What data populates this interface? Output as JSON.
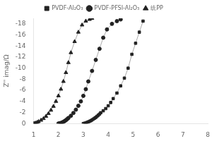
{
  "chart_data": {
    "type": "line",
    "ylabel": "Z'' imag/Ω",
    "xlim": [
      1,
      8
    ],
    "ylim": [
      0,
      -19
    ],
    "xticks": [
      1,
      2,
      3,
      4,
      5,
      6,
      7,
      8
    ],
    "yticks": [
      0,
      -2,
      -4,
      -6,
      -8,
      -10,
      -12,
      -14,
      -16,
      -18
    ],
    "grid": false,
    "legend": "top",
    "color": "#aaaaaa",
    "line_style": "solid",
    "series": [
      {
        "name": "PVDF-Al₂O₃",
        "marker": "square",
        "color": "#222222",
        "x": [
          3.0,
          3.05,
          3.1,
          3.15,
          3.2,
          3.25,
          3.3,
          3.35,
          3.4,
          3.45,
          3.5,
          3.55,
          3.6,
          3.65,
          3.7,
          3.8,
          3.9,
          4.0,
          4.1,
          4.2,
          4.35,
          4.5,
          4.65,
          4.8,
          4.95,
          5.1,
          5.25,
          5.4
        ],
        "values": [
          0,
          -0.05,
          -0.1,
          -0.2,
          -0.3,
          -0.4,
          -0.5,
          -0.65,
          -0.8,
          -0.95,
          -1.1,
          -1.3,
          -1.5,
          -1.7,
          -1.95,
          -2.3,
          -2.7,
          -3.2,
          -3.8,
          -4.5,
          -5.5,
          -6.8,
          -8.2,
          -10.0,
          -12.5,
          -14.5,
          -16.5,
          -18.5
        ]
      },
      {
        "name": "PVDF-PFSI-Al₂O₃",
        "marker": "circle",
        "color": "#222222",
        "x": [
          2.0,
          2.05,
          2.1,
          2.15,
          2.2,
          2.25,
          2.3,
          2.35,
          2.4,
          2.5,
          2.6,
          2.7,
          2.8,
          2.9,
          3.0,
          3.1,
          3.2,
          3.35,
          3.5,
          3.65,
          3.8,
          3.95,
          4.15,
          4.35,
          4.5
        ],
        "values": [
          0,
          -0.05,
          -0.1,
          -0.2,
          -0.3,
          -0.45,
          -0.6,
          -0.8,
          -1.0,
          -1.4,
          -1.9,
          -2.5,
          -3.2,
          -4.0,
          -5.0,
          -6.2,
          -7.6,
          -9.5,
          -11.5,
          -13.5,
          -15.5,
          -17.0,
          -18.0,
          -18.5,
          -18.8
        ]
      },
      {
        "name": "统PP",
        "marker": "triangle",
        "color": "#222222",
        "x": [
          1.0,
          1.05,
          1.1,
          1.15,
          1.2,
          1.3,
          1.4,
          1.5,
          1.6,
          1.7,
          1.8,
          1.9,
          2.0,
          2.1,
          2.2,
          2.3,
          2.4,
          2.5,
          2.65,
          2.8,
          2.95,
          3.1,
          3.25,
          3.35
        ],
        "values": [
          0,
          -0.05,
          -0.1,
          -0.2,
          -0.35,
          -0.6,
          -0.9,
          -1.3,
          -1.8,
          -2.4,
          -3.1,
          -4.0,
          -5.0,
          -6.2,
          -7.6,
          -9.2,
          -11.0,
          -12.8,
          -14.8,
          -16.5,
          -17.8,
          -18.5,
          -18.8,
          -19.0
        ]
      }
    ]
  }
}
